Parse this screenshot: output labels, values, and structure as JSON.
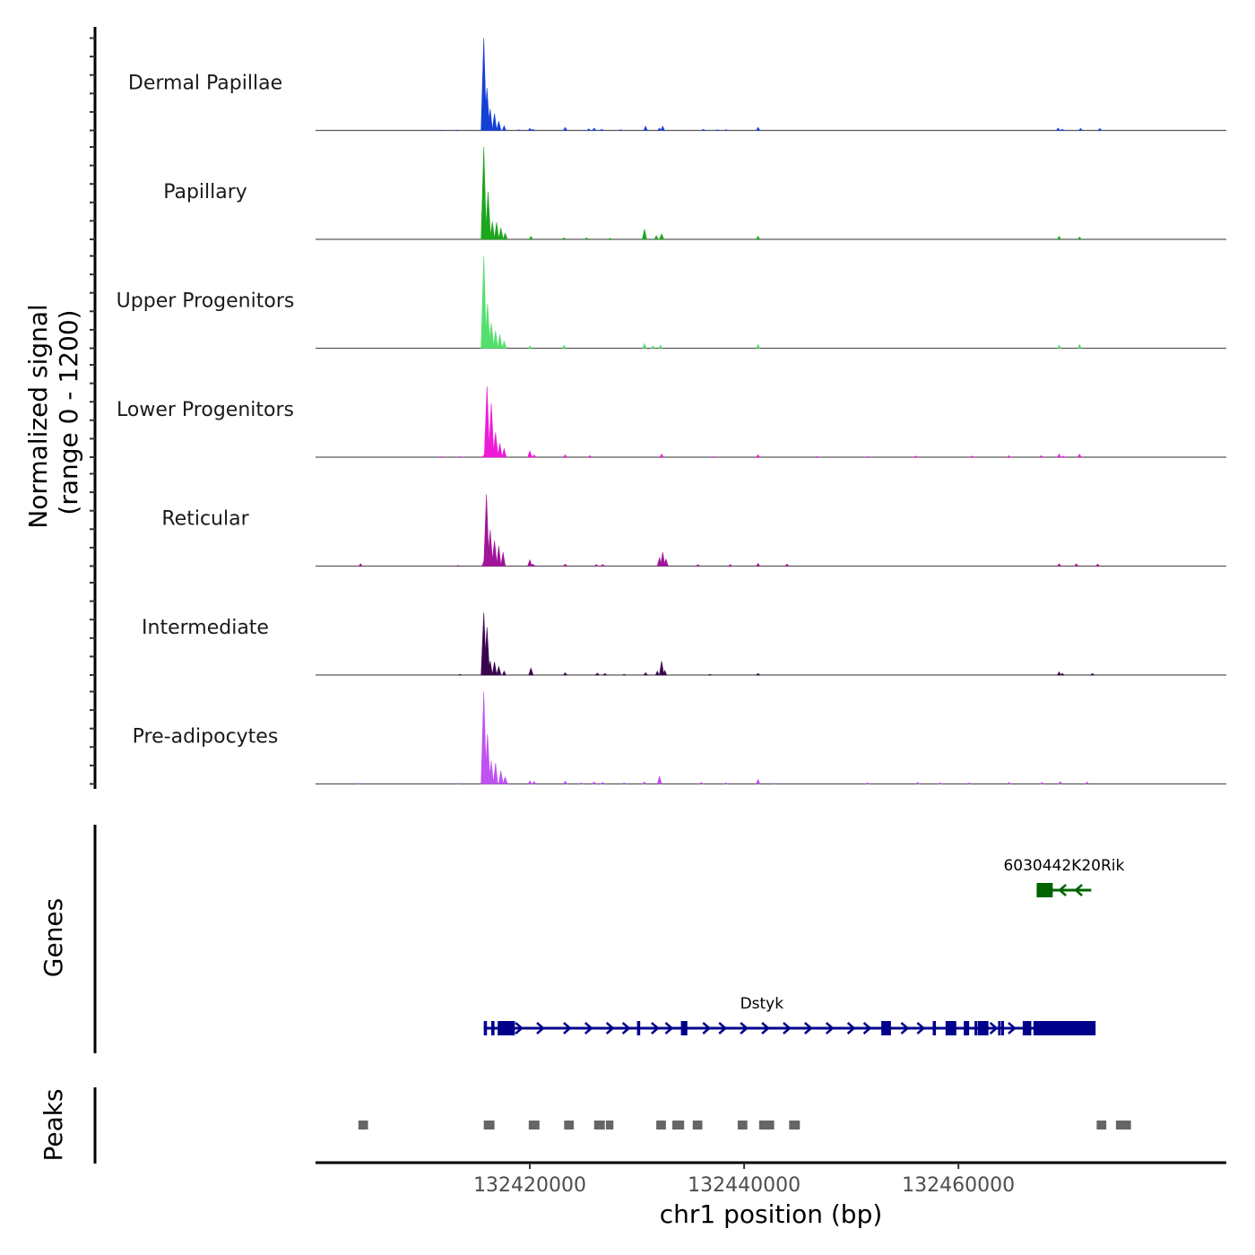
{
  "chart_data": {
    "type": "area",
    "title": "",
    "xlabel": "chr1 position (bp)",
    "ylabel": [
      "Normalized signal",
      "(range 0 - 1200)"
    ],
    "xlim": [
      132400000,
      132485000
    ],
    "ylim": [
      0,
      1200
    ],
    "x_ticks": [
      132420000,
      132440000,
      132460000
    ],
    "x_tick_labels": [
      "132420000",
      "132440000",
      "132460000"
    ],
    "tracks": [
      {
        "name": "Dermal Papillae",
        "color": "#1540d6",
        "peaks": [
          [
            132411800,
            3
          ],
          [
            132413200,
            4
          ],
          [
            132415700,
            1200
          ],
          [
            132416000,
            550
          ],
          [
            132416300,
            280
          ],
          [
            132416700,
            220
          ],
          [
            132417100,
            120
          ],
          [
            132417600,
            60
          ],
          [
            132419000,
            8
          ],
          [
            132420000,
            25
          ],
          [
            132420300,
            15
          ],
          [
            132423300,
            40
          ],
          [
            132425500,
            20
          ],
          [
            132426000,
            30
          ],
          [
            132426700,
            15
          ],
          [
            132428500,
            10
          ],
          [
            132430800,
            55
          ],
          [
            132432100,
            30
          ],
          [
            132432400,
            55
          ],
          [
            132436200,
            15
          ],
          [
            132437500,
            10
          ],
          [
            132438300,
            10
          ],
          [
            132441300,
            40
          ],
          [
            132469300,
            30
          ],
          [
            132469700,
            15
          ],
          [
            132471400,
            25
          ],
          [
            132473200,
            25
          ]
        ]
      },
      {
        "name": "Papillary",
        "color": "#1ea51e",
        "peaks": [
          [
            132415700,
            1200
          ],
          [
            132416100,
            620
          ],
          [
            132416500,
            230
          ],
          [
            132416900,
            220
          ],
          [
            132417300,
            150
          ],
          [
            132417700,
            80
          ],
          [
            132420100,
            40
          ],
          [
            132423200,
            20
          ],
          [
            132425300,
            20
          ],
          [
            132427500,
            15
          ],
          [
            132430700,
            130
          ],
          [
            132431800,
            50
          ],
          [
            132432300,
            70
          ],
          [
            132441300,
            40
          ],
          [
            132469400,
            40
          ],
          [
            132471300,
            30
          ]
        ]
      },
      {
        "name": "Upper Progenitors",
        "color": "#55e06e",
        "peaks": [
          [
            132415700,
            1200
          ],
          [
            132416050,
            580
          ],
          [
            132416400,
            330
          ],
          [
            132416800,
            230
          ],
          [
            132417200,
            180
          ],
          [
            132417600,
            90
          ],
          [
            132420000,
            30
          ],
          [
            132423200,
            40
          ],
          [
            132430700,
            60
          ],
          [
            132431500,
            30
          ],
          [
            132432200,
            40
          ],
          [
            132441300,
            50
          ],
          [
            132469400,
            40
          ],
          [
            132471300,
            50
          ]
        ]
      },
      {
        "name": "Lower Progenitors",
        "color": "#ee1bd7",
        "peaks": [
          [
            132411800,
            10
          ],
          [
            132413500,
            10
          ],
          [
            132415700,
            25
          ],
          [
            132416000,
            920
          ],
          [
            132416400,
            700
          ],
          [
            132416800,
            320
          ],
          [
            132417200,
            180
          ],
          [
            132417600,
            110
          ],
          [
            132420000,
            80
          ],
          [
            132420400,
            30
          ],
          [
            132423300,
            30
          ],
          [
            132425600,
            20
          ],
          [
            132432300,
            40
          ],
          [
            132437200,
            10
          ],
          [
            132441300,
            30
          ],
          [
            132446800,
            10
          ],
          [
            132451500,
            10
          ],
          [
            132456000,
            15
          ],
          [
            132461300,
            15
          ],
          [
            132464700,
            20
          ],
          [
            132467700,
            20
          ],
          [
            132469400,
            40
          ],
          [
            132469800,
            15
          ],
          [
            132471300,
            40
          ]
        ]
      },
      {
        "name": "Reticular",
        "color": "#a11498",
        "peaks": [
          [
            132404200,
            30
          ],
          [
            132413300,
            10
          ],
          [
            132415700,
            60
          ],
          [
            132415950,
            930
          ],
          [
            132416300,
            470
          ],
          [
            132416700,
            330
          ],
          [
            132417100,
            260
          ],
          [
            132417500,
            180
          ],
          [
            132420000,
            80
          ],
          [
            132420300,
            25
          ],
          [
            132423300,
            25
          ],
          [
            132426200,
            20
          ],
          [
            132426800,
            20
          ],
          [
            132432100,
            110
          ],
          [
            132432400,
            180
          ],
          [
            132432700,
            90
          ],
          [
            132435700,
            20
          ],
          [
            132438700,
            20
          ],
          [
            132441300,
            35
          ],
          [
            132444000,
            25
          ],
          [
            132469400,
            30
          ],
          [
            132471000,
            30
          ],
          [
            132473000,
            25
          ]
        ]
      },
      {
        "name": "Intermediate",
        "color": "#3a074f",
        "peaks": [
          [
            132413500,
            10
          ],
          [
            132415700,
            810
          ],
          [
            132416000,
            620
          ],
          [
            132416300,
            180
          ],
          [
            132416700,
            170
          ],
          [
            132417100,
            110
          ],
          [
            132417600,
            50
          ],
          [
            132420100,
            90
          ],
          [
            132423300,
            30
          ],
          [
            132426300,
            25
          ],
          [
            132427000,
            20
          ],
          [
            132428800,
            10
          ],
          [
            132430800,
            30
          ],
          [
            132431900,
            50
          ],
          [
            132432300,
            180
          ],
          [
            132432600,
            60
          ],
          [
            132436800,
            10
          ],
          [
            132441300,
            20
          ],
          [
            132469400,
            40
          ],
          [
            132469700,
            20
          ],
          [
            132472500,
            20
          ]
        ]
      },
      {
        "name": "Pre-adipocytes",
        "color": "#bf52f1",
        "peaks": [
          [
            132404000,
            10
          ],
          [
            132413300,
            10
          ],
          [
            132415700,
            1200
          ],
          [
            132416050,
            650
          ],
          [
            132416400,
            300
          ],
          [
            132416800,
            270
          ],
          [
            132417300,
            170
          ],
          [
            132417700,
            90
          ],
          [
            132420000,
            40
          ],
          [
            132420400,
            30
          ],
          [
            132423300,
            35
          ],
          [
            132424800,
            15
          ],
          [
            132426000,
            25
          ],
          [
            132426800,
            20
          ],
          [
            132428800,
            15
          ],
          [
            132430700,
            25
          ],
          [
            132432100,
            100
          ],
          [
            132436000,
            20
          ],
          [
            132438300,
            15
          ],
          [
            132441300,
            60
          ],
          [
            132442800,
            10
          ],
          [
            132451500,
            15
          ],
          [
            132456200,
            20
          ],
          [
            132458300,
            15
          ],
          [
            132461000,
            15
          ],
          [
            132464700,
            20
          ],
          [
            132467800,
            20
          ],
          [
            132469500,
            30
          ],
          [
            132472000,
            25
          ]
        ]
      }
    ],
    "genes": [
      {
        "name": "6030442K20Rik",
        "strand": "-",
        "color": "#006400",
        "start": 132467300,
        "end": 132472400,
        "exons": [
          [
            132467300,
            132468800
          ]
        ]
      },
      {
        "name": "Dstyk",
        "strand": "+",
        "color": "#00008b",
        "start": 132415700,
        "end": 132467600,
        "exons": [
          [
            132415700,
            132416000
          ],
          [
            132416400,
            132416700
          ],
          [
            132417000,
            132418600
          ],
          [
            132430000,
            132430300
          ],
          [
            132434100,
            132434700
          ],
          [
            132452800,
            132453700
          ],
          [
            132457600,
            132457900
          ],
          [
            132458800,
            132459800
          ],
          [
            132460500,
            132461000
          ],
          [
            132461500,
            132461700
          ],
          [
            132461800,
            132462800
          ],
          [
            132463700,
            132463900
          ],
          [
            132464000,
            132464200
          ],
          [
            132466000,
            132466800
          ],
          [
            132467000,
            132472800
          ]
        ],
        "arrows": [
          132419000,
          132421000,
          132423500,
          132425500,
          132427500,
          132429000,
          132431700,
          132433000,
          132436500,
          132438000,
          132440000,
          132442000,
          132444000,
          132446000,
          132448000,
          132450000,
          132451500,
          132455000,
          132456500,
          132463300,
          132465000
        ]
      }
    ],
    "peaks": [
      {
        "start": 132404000,
        "end": 132404900
      },
      {
        "start": 132415700,
        "end": 132416700
      },
      {
        "start": 132419900,
        "end": 132420900
      },
      {
        "start": 132423200,
        "end": 132424100
      },
      {
        "start": 132426000,
        "end": 132427000
      },
      {
        "start": 132427100,
        "end": 132427800
      },
      {
        "start": 132431800,
        "end": 132432700
      },
      {
        "start": 132433300,
        "end": 132434400
      },
      {
        "start": 132435200,
        "end": 132436100
      },
      {
        "start": 132439400,
        "end": 132440300
      },
      {
        "start": 132441400,
        "end": 132442800
      },
      {
        "start": 132444200,
        "end": 132445200
      },
      {
        "start": 132472900,
        "end": 132473800
      },
      {
        "start": 132474700,
        "end": 132476100
      }
    ],
    "panel_titles": {
      "genes": "Genes",
      "peaks": "Peaks"
    }
  }
}
